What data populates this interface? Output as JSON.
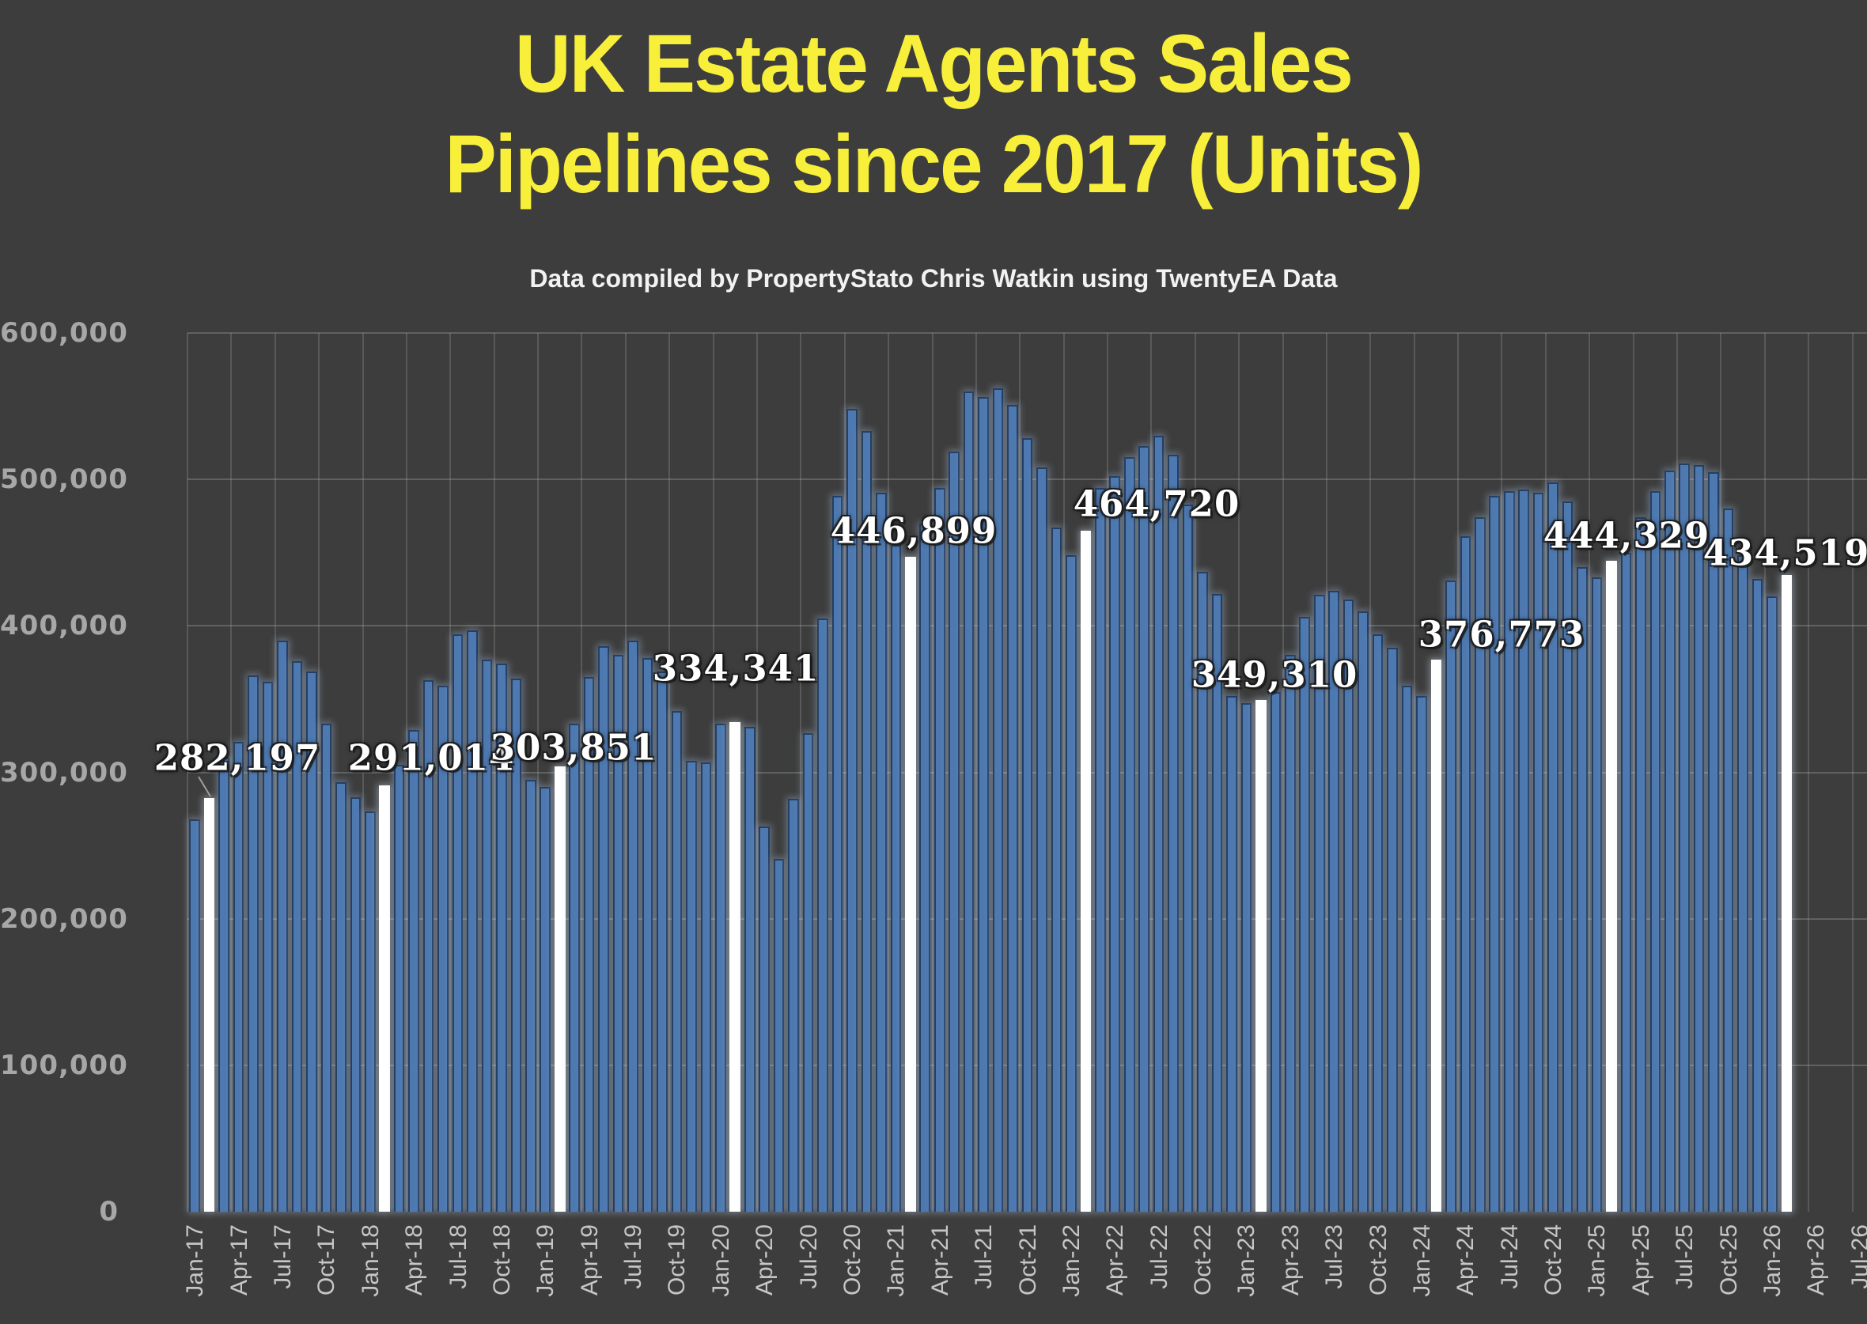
{
  "header": {
    "title_line1": "UK Estate Agents Sales",
    "title_line2": "Pipelines since 2017 (Units)",
    "subtitle": "Data compiled by PropertyStato Chris Watkin using TwentyEA Data"
  },
  "colors": {
    "background": "#3d3d3d",
    "title": "#f8ef3a",
    "subtitle": "#f2f2f2",
    "bar_fill": "#4e79b0",
    "bar_border": "#243f64",
    "highlight_fill": "#ffffff",
    "gridline": "#8f8f8f",
    "y_tick_text": "#a7a7a7",
    "x_tick_text": "#c6c6c6",
    "data_label_text": "#ffffff"
  },
  "chart_data": {
    "type": "bar",
    "title": "UK Estate Agents Sales Pipelines since 2017 (Units)",
    "subtitle": "Data compiled by PropertyStato Chris Watkin using TwentyEA Data",
    "xlabel": "",
    "ylabel": "",
    "ylim": [
      0,
      600000
    ],
    "grid": true,
    "legend_position": "none",
    "y_ticks": [
      "0",
      "100,000",
      "200,000",
      "300,000",
      "400,000",
      "500,000",
      "600,000"
    ],
    "x_tick_interval": 3,
    "x_tick_labels": [
      "Jan-17",
      "Apr-17",
      "Jul-17",
      "Oct-17",
      "Jan-18",
      "Apr-18",
      "Jul-18",
      "Oct-18",
      "Jan-19",
      "Apr-19",
      "Jul-19",
      "Oct-19",
      "Jan-20",
      "Apr-20",
      "Jul-20",
      "Oct-20",
      "Jan-21",
      "Apr-21",
      "Jul-21",
      "Oct-21",
      "Jan-22",
      "Apr-22",
      "Jul-22",
      "Oct-22",
      "Jan-23",
      "Apr-23",
      "Jul-23",
      "Oct-23",
      "Jan-24",
      "Apr-24",
      "Jul-24",
      "Oct-24",
      "Jan-25",
      "Apr-25",
      "Jul-25",
      "Oct-25",
      "Jan-26",
      "Apr-26",
      "Jul-26"
    ],
    "axis_months_total": 115,
    "categories": [
      "Jan-17",
      "Feb-17",
      "Mar-17",
      "Apr-17",
      "May-17",
      "Jun-17",
      "Jul-17",
      "Aug-17",
      "Sep-17",
      "Oct-17",
      "Nov-17",
      "Dec-17",
      "Jan-18",
      "Feb-18",
      "Mar-18",
      "Apr-18",
      "May-18",
      "Jun-18",
      "Jul-18",
      "Aug-18",
      "Sep-18",
      "Oct-18",
      "Nov-18",
      "Dec-18",
      "Jan-19",
      "Feb-19",
      "Mar-19",
      "Apr-19",
      "May-19",
      "Jun-19",
      "Jul-19",
      "Aug-19",
      "Sep-19",
      "Oct-19",
      "Nov-19",
      "Dec-19",
      "Jan-20",
      "Feb-20",
      "Mar-20",
      "Apr-20",
      "May-20",
      "Jun-20",
      "Jul-20",
      "Aug-20",
      "Sep-20",
      "Oct-20",
      "Nov-20",
      "Dec-20",
      "Jan-21",
      "Feb-21",
      "Mar-21",
      "Apr-21",
      "May-21",
      "Jun-21",
      "Jul-21",
      "Aug-21",
      "Sep-21",
      "Oct-21",
      "Nov-21",
      "Dec-21",
      "Jan-22",
      "Feb-22",
      "Mar-22",
      "Apr-22",
      "May-22",
      "Jun-22",
      "Jul-22",
      "Aug-22",
      "Sep-22",
      "Oct-22",
      "Nov-22",
      "Dec-22",
      "Jan-23",
      "Feb-23",
      "Mar-23",
      "Apr-23",
      "May-23",
      "Jun-23",
      "Jul-23",
      "Aug-23",
      "Sep-23",
      "Oct-23",
      "Nov-23",
      "Dec-23",
      "Jan-24",
      "Feb-24",
      "Mar-24",
      "Apr-24",
      "May-24",
      "Jun-24",
      "Jul-24",
      "Aug-24",
      "Sep-24",
      "Oct-24",
      "Nov-24",
      "Dec-24",
      "Jan-25",
      "Feb-25",
      "Mar-25",
      "Apr-25",
      "May-25",
      "Jun-25",
      "Jul-25",
      "Aug-25",
      "Sep-25",
      "Oct-25",
      "Nov-25",
      "Dec-25",
      "Jan-26",
      "Feb-26"
    ],
    "values": [
      268000,
      282197,
      310000,
      321000,
      366000,
      362000,
      390000,
      376000,
      369000,
      333000,
      293000,
      283000,
      273000,
      291014,
      305000,
      329000,
      363000,
      359000,
      394000,
      397000,
      377000,
      374000,
      364000,
      295000,
      290000,
      303851,
      333000,
      365000,
      386000,
      380000,
      390000,
      378000,
      369000,
      342000,
      308000,
      307000,
      333000,
      334341,
      331000,
      263000,
      241000,
      282000,
      327000,
      405000,
      489000,
      548000,
      533000,
      491000,
      455000,
      446899,
      470000,
      494000,
      519000,
      560000,
      556000,
      562000,
      551000,
      528000,
      508000,
      467000,
      448000,
      464720,
      494000,
      502000,
      515000,
      523000,
      530000,
      517000,
      483000,
      437000,
      422000,
      352000,
      347000,
      349310,
      355000,
      380000,
      406000,
      421000,
      424000,
      418000,
      410000,
      394000,
      385000,
      359000,
      352000,
      376773,
      431000,
      461000,
      474000,
      489000,
      492000,
      493000,
      491000,
      498000,
      485000,
      440000,
      433000,
      444329,
      450000,
      474000,
      492000,
      506000,
      511000,
      510000,
      505000,
      480000,
      448000,
      432000,
      420000,
      434519
    ],
    "highlights": [
      {
        "index": 1,
        "category": "Feb-17",
        "value": 282197,
        "label": "282,197"
      },
      {
        "index": 13,
        "category": "Feb-18",
        "value": 291014,
        "label": "291,014"
      },
      {
        "index": 25,
        "category": "Feb-19",
        "value": 303851,
        "label": "303,851"
      },
      {
        "index": 37,
        "category": "Feb-20",
        "value": 334341,
        "label": "334,341"
      },
      {
        "index": 49,
        "category": "Feb-21",
        "value": 446899,
        "label": "446,899"
      },
      {
        "index": 61,
        "category": "Feb-22",
        "value": 464720,
        "label": "464,720"
      },
      {
        "index": 73,
        "category": "Feb-23",
        "value": 349310,
        "label": "349,310"
      },
      {
        "index": 85,
        "category": "Feb-24",
        "value": 376773,
        "label": "376,773"
      },
      {
        "index": 97,
        "category": "Feb-25",
        "value": 444329,
        "label": "444,329"
      },
      {
        "index": 109,
        "category": "Feb-26",
        "value": 434519,
        "label": "434,519"
      }
    ]
  }
}
